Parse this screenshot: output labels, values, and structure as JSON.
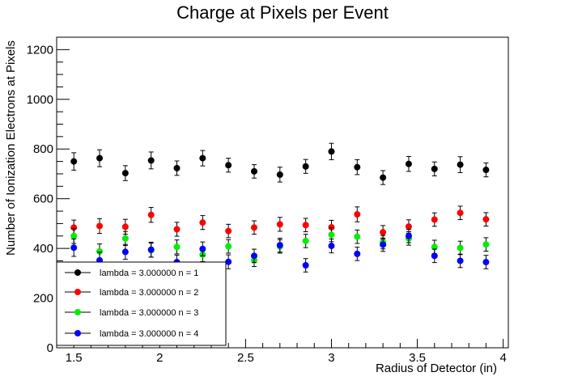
{
  "chart_data": {
    "type": "scatter",
    "title": "Charge at Pixels per Event",
    "xlabel": "Radius of Detector (in)",
    "ylabel": "Number of Ionization Electrons at Pixels",
    "xlim": [
      1.4,
      4.03
    ],
    "ylim": [
      0,
      1250
    ],
    "x_ticks": [
      "1.5",
      "2",
      "2.5",
      "3",
      "3.5",
      "4"
    ],
    "y_ticks": [
      "0",
      "200",
      "400",
      "600",
      "800",
      "1000",
      "1200"
    ],
    "grid": false,
    "legend_position": "bottom-left",
    "x": [
      1.5,
      1.65,
      1.8,
      1.95,
      2.1,
      2.25,
      2.4,
      2.55,
      2.7,
      2.85,
      3.0,
      3.15,
      3.3,
      3.45,
      3.6,
      3.75,
      3.9
    ],
    "series": [
      {
        "name": "lambda = 3.000000 n = 1",
        "color": "#000000",
        "values": [
          750,
          763,
          703,
          754,
          723,
          763,
          735,
          710,
          697,
          730,
          790,
          727,
          685,
          740,
          720,
          737,
          716
        ],
        "errors": [
          35,
          34,
          30,
          34,
          29,
          31,
          28,
          27,
          30,
          28,
          33,
          30,
          28,
          30,
          28,
          32,
          28
        ]
      },
      {
        "name": "lambda = 3.000000 n = 2",
        "color": "#ff0000",
        "values": [
          484,
          490,
          487,
          535,
          477,
          504,
          470,
          484,
          497,
          494,
          485,
          537,
          465,
          488,
          516,
          543,
          517
        ],
        "errors": [
          30,
          30,
          30,
          30,
          28,
          28,
          27,
          27,
          28,
          27,
          28,
          30,
          27,
          27,
          27,
          27,
          27
        ]
      },
      {
        "name": "lambda = 3.000000 n = 3",
        "color": "#00ee00",
        "values": [
          450,
          388,
          440,
          393,
          406,
          375,
          408,
          352,
          408,
          430,
          455,
          447,
          425,
          440,
          406,
          402,
          416
        ],
        "errors": [
          30,
          30,
          28,
          28,
          28,
          28,
          27,
          25,
          27,
          27,
          28,
          27,
          27,
          27,
          27,
          27,
          27
        ]
      },
      {
        "name": "lambda = 3.000000 n = 4",
        "color": "#0000ff",
        "values": [
          403,
          352,
          386,
          395,
          345,
          398,
          346,
          370,
          413,
          332,
          410,
          378,
          415,
          450,
          370,
          350,
          345
        ],
        "errors": [
          35,
          33,
          30,
          30,
          28,
          28,
          28,
          27,
          28,
          27,
          28,
          27,
          27,
          27,
          27,
          27,
          27
        ]
      }
    ]
  }
}
